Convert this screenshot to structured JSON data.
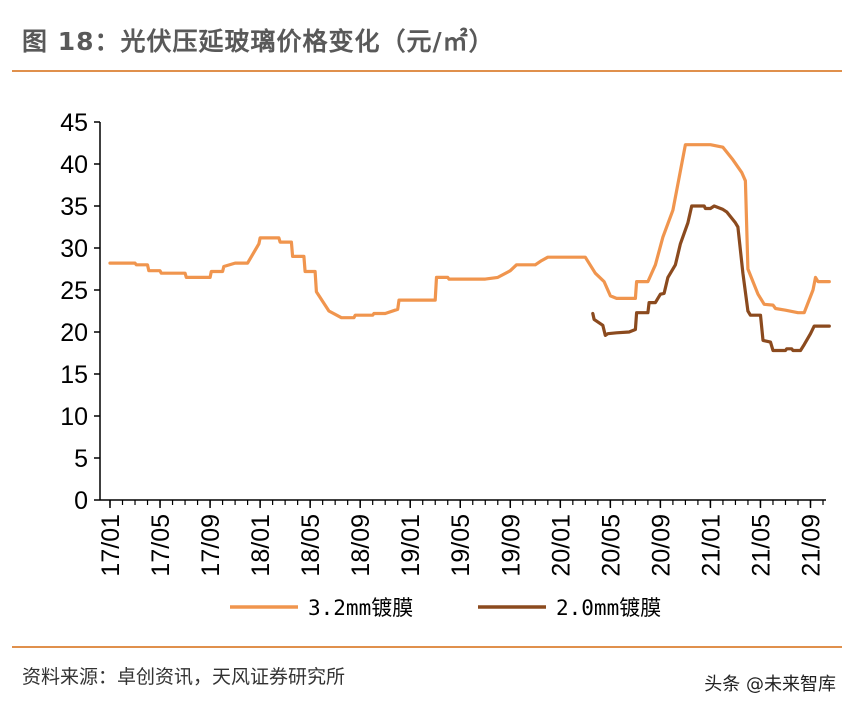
{
  "title": "图 18：光伏压延玻璃价格变化（元/㎡）",
  "source": "资料来源：卓创资讯，天风证券研究所",
  "watermark": "头条 @未来智库",
  "colors": {
    "accent": "#e0904c",
    "series1": "#f0954e",
    "series2": "#8b4a1e"
  },
  "chart_data": {
    "type": "line",
    "title": "",
    "xlabel": "",
    "ylabel": "",
    "ylim": [
      0,
      45
    ],
    "yticks": [
      "0",
      "5",
      "10",
      "15",
      "20",
      "25",
      "30",
      "35",
      "40",
      "45"
    ],
    "xlim": [
      0,
      57
    ],
    "xticks": [
      {
        "label": "17/01",
        "x": 0
      },
      {
        "label": "17/05",
        "x": 4
      },
      {
        "label": "17/09",
        "x": 8
      },
      {
        "label": "18/01",
        "x": 12
      },
      {
        "label": "18/05",
        "x": 16
      },
      {
        "label": "18/09",
        "x": 20
      },
      {
        "label": "19/01",
        "x": 24
      },
      {
        "label": "19/05",
        "x": 28
      },
      {
        "label": "19/09",
        "x": 32
      },
      {
        "label": "20/01",
        "x": 36
      },
      {
        "label": "20/05",
        "x": 40
      },
      {
        "label": "20/09",
        "x": 44
      },
      {
        "label": "21/01",
        "x": 48
      },
      {
        "label": "21/05",
        "x": 52
      },
      {
        "label": "21/09",
        "x": 56
      }
    ],
    "legend_position": "bottom",
    "series": [
      {
        "name": "3.2mm镀膜",
        "points": [
          [
            0,
            28.2
          ],
          [
            2,
            28.2
          ],
          [
            2.1,
            28.0
          ],
          [
            3,
            28.0
          ],
          [
            3.1,
            27.3
          ],
          [
            4,
            27.3
          ],
          [
            4.1,
            27.0
          ],
          [
            6,
            27.0
          ],
          [
            6.1,
            26.5
          ],
          [
            8,
            26.5
          ],
          [
            8.1,
            27.2
          ],
          [
            9,
            27.2
          ],
          [
            9.1,
            27.8
          ],
          [
            10,
            28.2
          ],
          [
            11,
            28.2
          ],
          [
            11.9,
            30.5
          ],
          [
            12,
            31.2
          ],
          [
            13.5,
            31.2
          ],
          [
            13.6,
            30.7
          ],
          [
            14.5,
            30.7
          ],
          [
            14.6,
            29.0
          ],
          [
            15.5,
            29.0
          ],
          [
            15.6,
            27.2
          ],
          [
            16.4,
            27.2
          ],
          [
            16.5,
            24.8
          ],
          [
            17.5,
            22.5
          ],
          [
            18.5,
            21.7
          ],
          [
            19.5,
            21.7
          ],
          [
            19.6,
            22.0
          ],
          [
            21,
            22.0
          ],
          [
            21.1,
            22.2
          ],
          [
            22,
            22.2
          ],
          [
            23,
            22.7
          ],
          [
            23.1,
            23.8
          ],
          [
            26,
            23.8
          ],
          [
            26.1,
            26.5
          ],
          [
            27,
            26.5
          ],
          [
            27.1,
            26.3
          ],
          [
            30,
            26.3
          ],
          [
            31,
            26.5
          ],
          [
            32,
            27.3
          ],
          [
            32.5,
            28.0
          ],
          [
            34,
            28.0
          ],
          [
            34.5,
            28.5
          ],
          [
            35,
            28.9
          ],
          [
            38,
            28.9
          ],
          [
            38.8,
            27.0
          ],
          [
            39.5,
            26.0
          ],
          [
            40,
            24.3
          ],
          [
            40.5,
            24.0
          ],
          [
            42,
            24.0
          ],
          [
            42.1,
            26.0
          ],
          [
            43,
            26.0
          ],
          [
            43.6,
            28.0
          ],
          [
            44.2,
            31.3
          ],
          [
            45,
            34.5
          ],
          [
            46,
            42.3
          ],
          [
            48,
            42.3
          ],
          [
            49,
            42.0
          ],
          [
            49.8,
            40.5
          ],
          [
            50.5,
            39.0
          ],
          [
            50.8,
            38.0
          ],
          [
            51,
            27.5
          ],
          [
            51.8,
            24.5
          ],
          [
            52.3,
            23.3
          ],
          [
            53,
            23.2
          ],
          [
            53.2,
            22.8
          ],
          [
            54,
            22.6
          ],
          [
            55,
            22.3
          ],
          [
            55.5,
            22.3
          ],
          [
            56.2,
            25.0
          ],
          [
            56.4,
            26.5
          ],
          [
            56.6,
            26.0
          ],
          [
            57.5,
            26.0
          ]
        ]
      },
      {
        "name": "2.0mm镀膜",
        "points": [
          [
            38.6,
            22.2
          ],
          [
            38.7,
            21.5
          ],
          [
            39.4,
            20.8
          ],
          [
            39.6,
            19.6
          ],
          [
            39.8,
            19.8
          ],
          [
            40.5,
            19.9
          ],
          [
            41.5,
            20.0
          ],
          [
            42,
            20.3
          ],
          [
            42.1,
            22.3
          ],
          [
            43,
            22.3
          ],
          [
            43.1,
            23.5
          ],
          [
            43.6,
            23.5
          ],
          [
            44,
            24.5
          ],
          [
            44.3,
            24.6
          ],
          [
            44.6,
            26.5
          ],
          [
            45.2,
            28.0
          ],
          [
            45.6,
            30.5
          ],
          [
            46.2,
            33.0
          ],
          [
            46.5,
            35.0
          ],
          [
            47.5,
            35.0
          ],
          [
            47.6,
            34.7
          ],
          [
            48,
            34.7
          ],
          [
            48.3,
            35.0
          ],
          [
            49,
            34.6
          ],
          [
            49.3,
            34.3
          ],
          [
            50,
            33.0
          ],
          [
            50.2,
            32.5
          ],
          [
            50.6,
            27.0
          ],
          [
            51,
            22.5
          ],
          [
            51.2,
            22.0
          ],
          [
            52,
            22.0
          ],
          [
            52.2,
            19.0
          ],
          [
            52.8,
            18.8
          ],
          [
            53,
            17.8
          ],
          [
            54,
            17.8
          ],
          [
            54.1,
            18.0
          ],
          [
            54.5,
            18.0
          ],
          [
            54.6,
            17.8
          ],
          [
            55.2,
            17.8
          ],
          [
            55.5,
            18.5
          ],
          [
            56,
            19.8
          ],
          [
            56.3,
            20.7
          ],
          [
            57.5,
            20.7
          ]
        ]
      }
    ]
  }
}
